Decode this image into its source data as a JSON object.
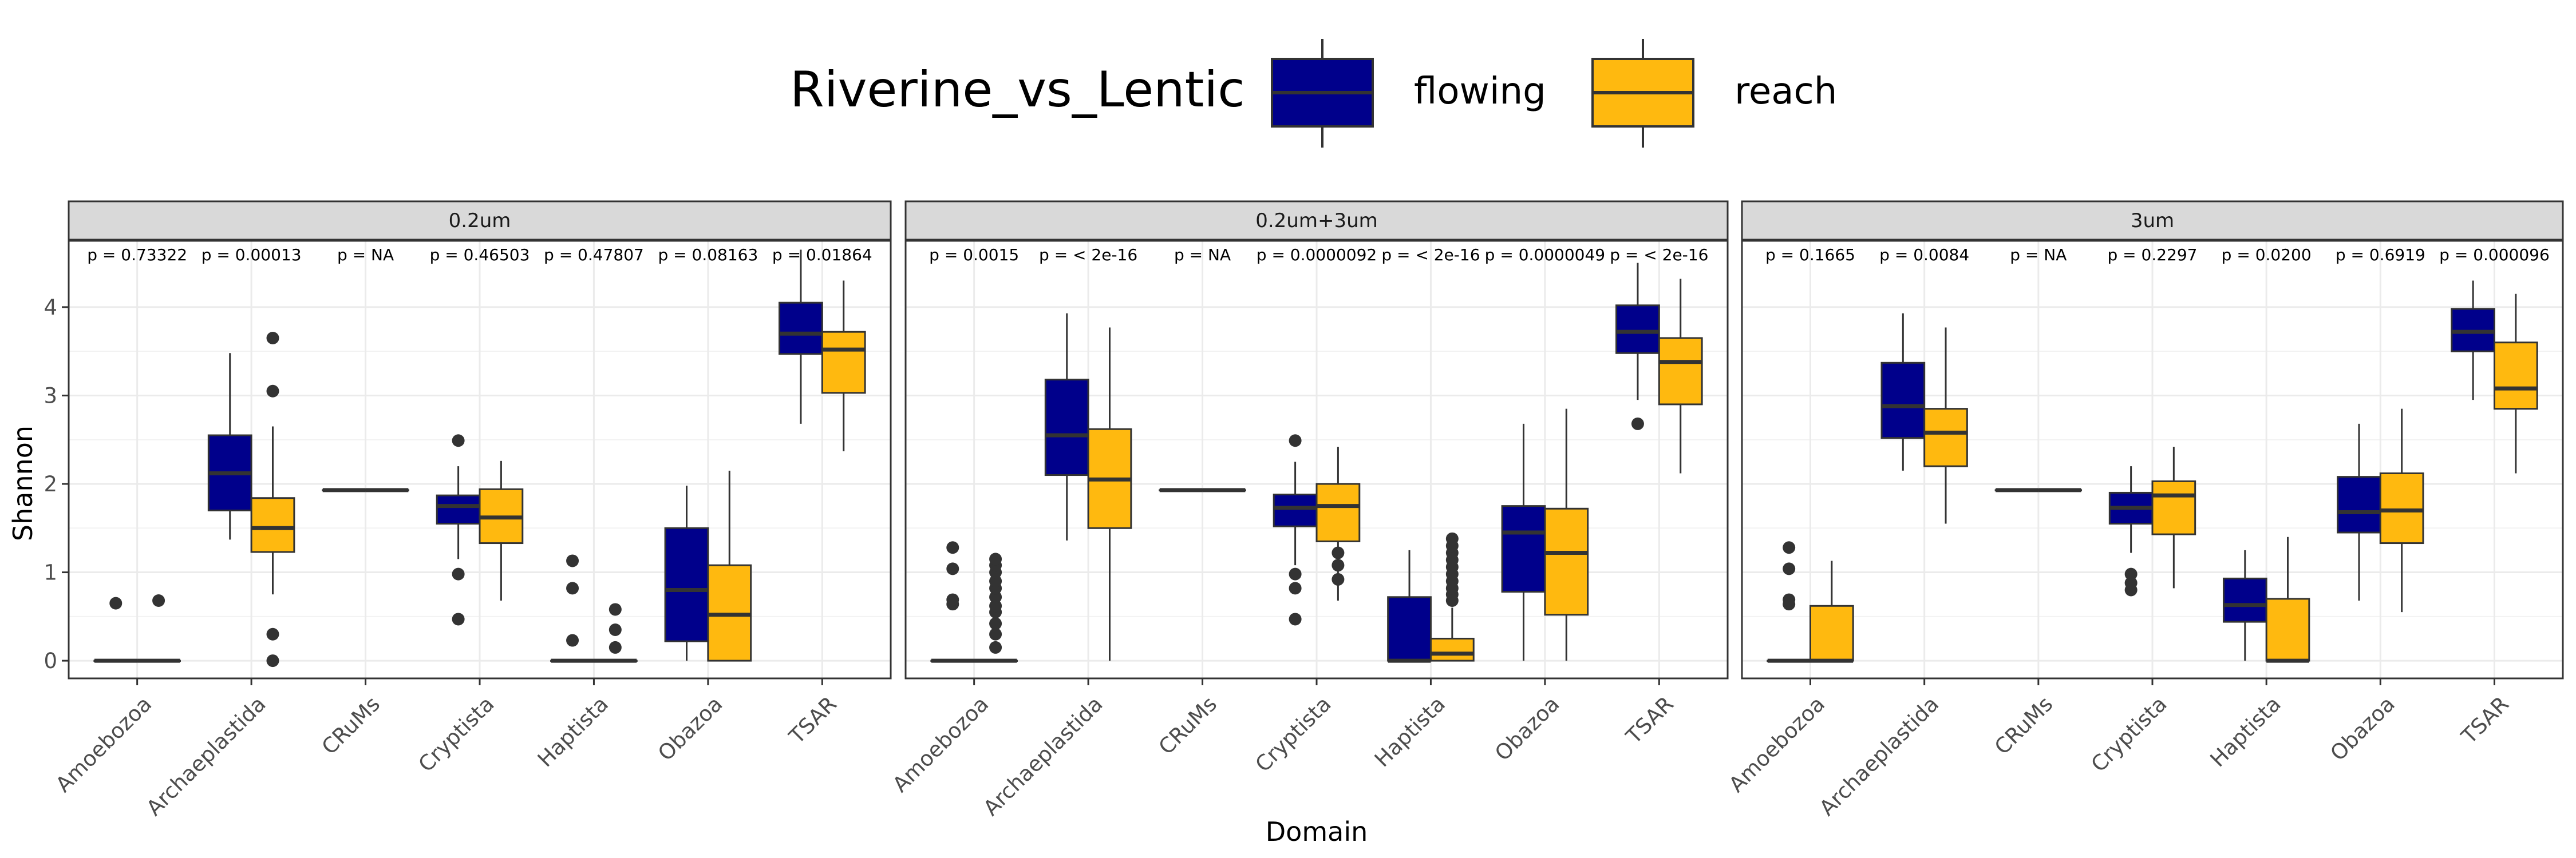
{
  "chart_data": {
    "type": "boxplot",
    "xlabel": "Domain",
    "ylabel": "Shannon",
    "ylim": [
      -0.2,
      4.75
    ],
    "yticks": [
      0,
      1,
      2,
      3,
      4
    ],
    "categories": [
      "Amoebozoa",
      "Archaeplastida",
      "CRuMs",
      "Cryptista",
      "Haptista",
      "Obazoa",
      "TSAR"
    ],
    "legend": {
      "title": "Riverine_vs_Lentic",
      "placement": "top",
      "items": [
        {
          "name": "flowing",
          "color": "#00008B"
        },
        {
          "name": "reach",
          "color": "#FFB90F"
        }
      ]
    },
    "grid": true,
    "facets": [
      {
        "name": "0.2um",
        "pvalues": [
          "p = 0.73322",
          "p = 0.00013",
          "p = NA",
          "p = 0.46503",
          "p = 0.47807",
          "p = 0.08163",
          "p = 0.01864"
        ],
        "boxes": [
          {
            "category": "Amoebozoa",
            "series": "flowing",
            "whislo": 0,
            "q1": 0,
            "med": 0,
            "q3": 0,
            "whishi": 0,
            "fliers": [
              0.65
            ]
          },
          {
            "category": "Amoebozoa",
            "series": "reach",
            "whislo": 0,
            "q1": 0,
            "med": 0,
            "q3": 0,
            "whishi": 0,
            "fliers": [
              0.68
            ]
          },
          {
            "category": "Archaeplastida",
            "series": "flowing",
            "whislo": 1.37,
            "q1": 1.7,
            "med": 2.12,
            "q3": 2.55,
            "whishi": 3.48,
            "fliers": []
          },
          {
            "category": "Archaeplastida",
            "series": "reach",
            "whislo": 0.75,
            "q1": 1.23,
            "med": 1.5,
            "q3": 1.84,
            "whishi": 2.65,
            "fliers": [
              0,
              0.3,
              3.05,
              3.65
            ]
          },
          {
            "category": "CRuMs",
            "series": "flowing",
            "whislo": 1.93,
            "q1": 1.93,
            "med": 1.93,
            "q3": 1.93,
            "whishi": 1.93,
            "fliers": []
          },
          {
            "category": "CRuMs",
            "series": "reach",
            "whislo": 1.93,
            "q1": 1.93,
            "med": 1.93,
            "q3": 1.93,
            "whishi": 1.93,
            "fliers": []
          },
          {
            "category": "Cryptista",
            "series": "flowing",
            "whislo": 1.15,
            "q1": 1.55,
            "med": 1.75,
            "q3": 1.87,
            "whishi": 2.2,
            "fliers": [
              0.47,
              0.98,
              2.49
            ]
          },
          {
            "category": "Cryptista",
            "series": "reach",
            "whislo": 0.68,
            "q1": 1.33,
            "med": 1.62,
            "q3": 1.94,
            "whishi": 2.26,
            "fliers": []
          },
          {
            "category": "Haptista",
            "series": "flowing",
            "whislo": 0,
            "q1": 0,
            "med": 0,
            "q3": 0,
            "whishi": 0,
            "fliers": [
              0.23,
              0.82,
              1.13
            ]
          },
          {
            "category": "Haptista",
            "series": "reach",
            "whislo": 0,
            "q1": 0,
            "med": 0,
            "q3": 0,
            "whishi": 0,
            "fliers": [
              0.15,
              0.35,
              0.58
            ]
          },
          {
            "category": "Obazoa",
            "series": "flowing",
            "whislo": 0,
            "q1": 0.22,
            "med": 0.8,
            "q3": 1.5,
            "whishi": 1.98,
            "fliers": []
          },
          {
            "category": "Obazoa",
            "series": "reach",
            "whislo": 0,
            "q1": 0,
            "med": 0.52,
            "q3": 1.08,
            "whishi": 2.15,
            "fliers": []
          },
          {
            "category": "TSAR",
            "series": "flowing",
            "whislo": 2.68,
            "q1": 3.47,
            "med": 3.7,
            "q3": 4.05,
            "whishi": 4.65,
            "fliers": []
          },
          {
            "category": "TSAR",
            "series": "reach",
            "whislo": 2.37,
            "q1": 3.03,
            "med": 3.52,
            "q3": 3.72,
            "whishi": 4.3,
            "fliers": []
          }
        ]
      },
      {
        "name": "0.2um+3um",
        "pvalues": [
          "p = 0.0015",
          "p = < 2e-16",
          "p = NA",
          "p = 0.0000092",
          "p = < 2e-16",
          "p = 0.0000049",
          "p = < 2e-16"
        ],
        "boxes": [
          {
            "category": "Amoebozoa",
            "series": "flowing",
            "whislo": 0,
            "q1": 0,
            "med": 0,
            "q3": 0,
            "whishi": 0,
            "fliers": [
              0.64,
              0.69,
              1.04,
              1.28
            ]
          },
          {
            "category": "Amoebozoa",
            "series": "reach",
            "whislo": 0,
            "q1": 0,
            "med": 0,
            "q3": 0,
            "whishi": 0,
            "fliers": [
              0.15,
              0.3,
              0.42,
              0.55,
              0.62,
              0.72,
              0.82,
              0.9,
              1.0,
              1.08,
              1.15
            ]
          },
          {
            "category": "Archaeplastida",
            "series": "flowing",
            "whislo": 1.36,
            "q1": 2.1,
            "med": 2.55,
            "q3": 3.18,
            "whishi": 3.93,
            "fliers": []
          },
          {
            "category": "Archaeplastida",
            "series": "reach",
            "whislo": 0,
            "q1": 1.5,
            "med": 2.05,
            "q3": 2.62,
            "whishi": 3.77,
            "fliers": []
          },
          {
            "category": "CRuMs",
            "series": "flowing",
            "whislo": 1.93,
            "q1": 1.93,
            "med": 1.93,
            "q3": 1.93,
            "whishi": 1.93,
            "fliers": []
          },
          {
            "category": "CRuMs",
            "series": "reach",
            "whislo": 1.93,
            "q1": 1.93,
            "med": 1.93,
            "q3": 1.93,
            "whishi": 1.93,
            "fliers": []
          },
          {
            "category": "Cryptista",
            "series": "flowing",
            "whislo": 1.08,
            "q1": 1.52,
            "med": 1.73,
            "q3": 1.88,
            "whishi": 2.25,
            "fliers": [
              0.47,
              0.82,
              0.98,
              2.49
            ]
          },
          {
            "category": "Cryptista",
            "series": "reach",
            "whislo": 0.68,
            "q1": 1.35,
            "med": 1.75,
            "q3": 2.0,
            "whishi": 2.42,
            "fliers": [
              0.92,
              1.08,
              1.22
            ]
          },
          {
            "category": "Haptista",
            "series": "flowing",
            "whislo": 0,
            "q1": 0,
            "med": 0,
            "q3": 0.72,
            "whishi": 1.25,
            "fliers": []
          },
          {
            "category": "Haptista",
            "series": "reach",
            "whislo": 0,
            "q1": 0,
            "med": 0.08,
            "q3": 0.25,
            "whishi": 0.6,
            "fliers": [
              0.68,
              0.75,
              0.82,
              0.9,
              0.98,
              1.06,
              1.14,
              1.22,
              1.3,
              1.38
            ]
          },
          {
            "category": "Obazoa",
            "series": "flowing",
            "whislo": 0,
            "q1": 0.78,
            "med": 1.45,
            "q3": 1.75,
            "whishi": 2.68,
            "fliers": []
          },
          {
            "category": "Obazoa",
            "series": "reach",
            "whislo": 0,
            "q1": 0.52,
            "med": 1.22,
            "q3": 1.72,
            "whishi": 2.85,
            "fliers": []
          },
          {
            "category": "TSAR",
            "series": "flowing",
            "whislo": 2.95,
            "q1": 3.48,
            "med": 3.72,
            "q3": 4.02,
            "whishi": 4.5,
            "fliers": [
              2.68
            ]
          },
          {
            "category": "TSAR",
            "series": "reach",
            "whislo": 2.12,
            "q1": 2.9,
            "med": 3.38,
            "q3": 3.65,
            "whishi": 4.32,
            "fliers": []
          }
        ]
      },
      {
        "name": "3um",
        "pvalues": [
          "p = 0.1665",
          "p = 0.0084",
          "p = NA",
          "p = 0.2297",
          "p = 0.0200",
          "p = 0.6919",
          "p = 0.000096"
        ],
        "boxes": [
          {
            "category": "Amoebozoa",
            "series": "flowing",
            "whislo": 0,
            "q1": 0,
            "med": 0,
            "q3": 0,
            "whishi": 0,
            "fliers": [
              0.64,
              0.69,
              1.04,
              1.28
            ]
          },
          {
            "category": "Amoebozoa",
            "series": "reach",
            "whislo": 0,
            "q1": 0,
            "med": 0,
            "q3": 0.62,
            "whishi": 1.13,
            "fliers": []
          },
          {
            "category": "Archaeplastida",
            "series": "flowing",
            "whislo": 2.15,
            "q1": 2.52,
            "med": 2.88,
            "q3": 3.37,
            "whishi": 3.93,
            "fliers": []
          },
          {
            "category": "Archaeplastida",
            "series": "reach",
            "whislo": 1.55,
            "q1": 2.2,
            "med": 2.58,
            "q3": 2.85,
            "whishi": 3.77,
            "fliers": []
          },
          {
            "category": "CRuMs",
            "series": "flowing",
            "whislo": 1.93,
            "q1": 1.93,
            "med": 1.93,
            "q3": 1.93,
            "whishi": 1.93,
            "fliers": []
          },
          {
            "category": "CRuMs",
            "series": "reach",
            "whislo": 1.93,
            "q1": 1.93,
            "med": 1.93,
            "q3": 1.93,
            "whishi": 1.93,
            "fliers": []
          },
          {
            "category": "Cryptista",
            "series": "flowing",
            "whislo": 1.22,
            "q1": 1.55,
            "med": 1.73,
            "q3": 1.9,
            "whishi": 2.2,
            "fliers": [
              0.8,
              0.88,
              0.98
            ]
          },
          {
            "category": "Cryptista",
            "series": "reach",
            "whislo": 0.82,
            "q1": 1.43,
            "med": 1.87,
            "q3": 2.03,
            "whishi": 2.42,
            "fliers": []
          },
          {
            "category": "Haptista",
            "series": "flowing",
            "whislo": 0,
            "q1": 0.44,
            "med": 0.63,
            "q3": 0.93,
            "whishi": 1.25,
            "fliers": []
          },
          {
            "category": "Haptista",
            "series": "reach",
            "whislo": 0,
            "q1": 0,
            "med": 0,
            "q3": 0.7,
            "whishi": 1.4,
            "fliers": []
          },
          {
            "category": "Obazoa",
            "series": "flowing",
            "whislo": 0.68,
            "q1": 1.45,
            "med": 1.68,
            "q3": 2.08,
            "whishi": 2.68,
            "fliers": []
          },
          {
            "category": "Obazoa",
            "series": "reach",
            "whislo": 0.55,
            "q1": 1.33,
            "med": 1.7,
            "q3": 2.12,
            "whishi": 2.85,
            "fliers": []
          },
          {
            "category": "TSAR",
            "series": "flowing",
            "whislo": 2.95,
            "q1": 3.5,
            "med": 3.72,
            "q3": 3.98,
            "whishi": 4.3,
            "fliers": []
          },
          {
            "category": "TSAR",
            "series": "reach",
            "whislo": 2.12,
            "q1": 2.85,
            "med": 3.08,
            "q3": 3.6,
            "whishi": 4.15,
            "fliers": []
          }
        ]
      }
    ]
  }
}
